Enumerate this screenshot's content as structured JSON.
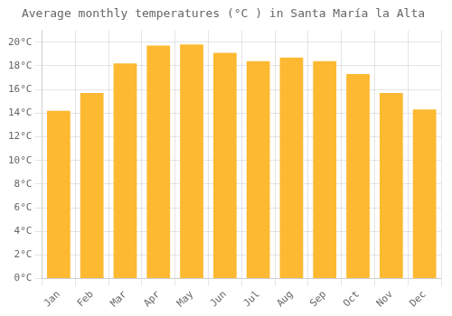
{
  "chart_data": {
    "type": "bar",
    "title": "Average monthly temperatures (°C ) in Santa María la Alta",
    "categories": [
      "Jan",
      "Feb",
      "Mar",
      "Apr",
      "May",
      "Jun",
      "Jul",
      "Aug",
      "Sep",
      "Oct",
      "Nov",
      "Dec"
    ],
    "values": [
      14.2,
      15.7,
      18.2,
      19.7,
      19.8,
      19.1,
      18.4,
      18.7,
      18.4,
      17.3,
      15.7,
      14.3
    ],
    "color": "#FDB931",
    "ylim": [
      0,
      21
    ],
    "yticks": [
      {
        "value": 0,
        "label": "0°C"
      },
      {
        "value": 2,
        "label": "2°C"
      },
      {
        "value": 4,
        "label": "4°C"
      },
      {
        "value": 6,
        "label": "6°C"
      },
      {
        "value": 8,
        "label": "8°C"
      },
      {
        "value": 10,
        "label": "10°C"
      },
      {
        "value": 12,
        "label": "12°C"
      },
      {
        "value": 14,
        "label": "14°C"
      },
      {
        "value": 16,
        "label": "16°C"
      },
      {
        "value": 18,
        "label": "18°C"
      },
      {
        "value": 20,
        "label": "20°C"
      }
    ],
    "grid": true
  }
}
